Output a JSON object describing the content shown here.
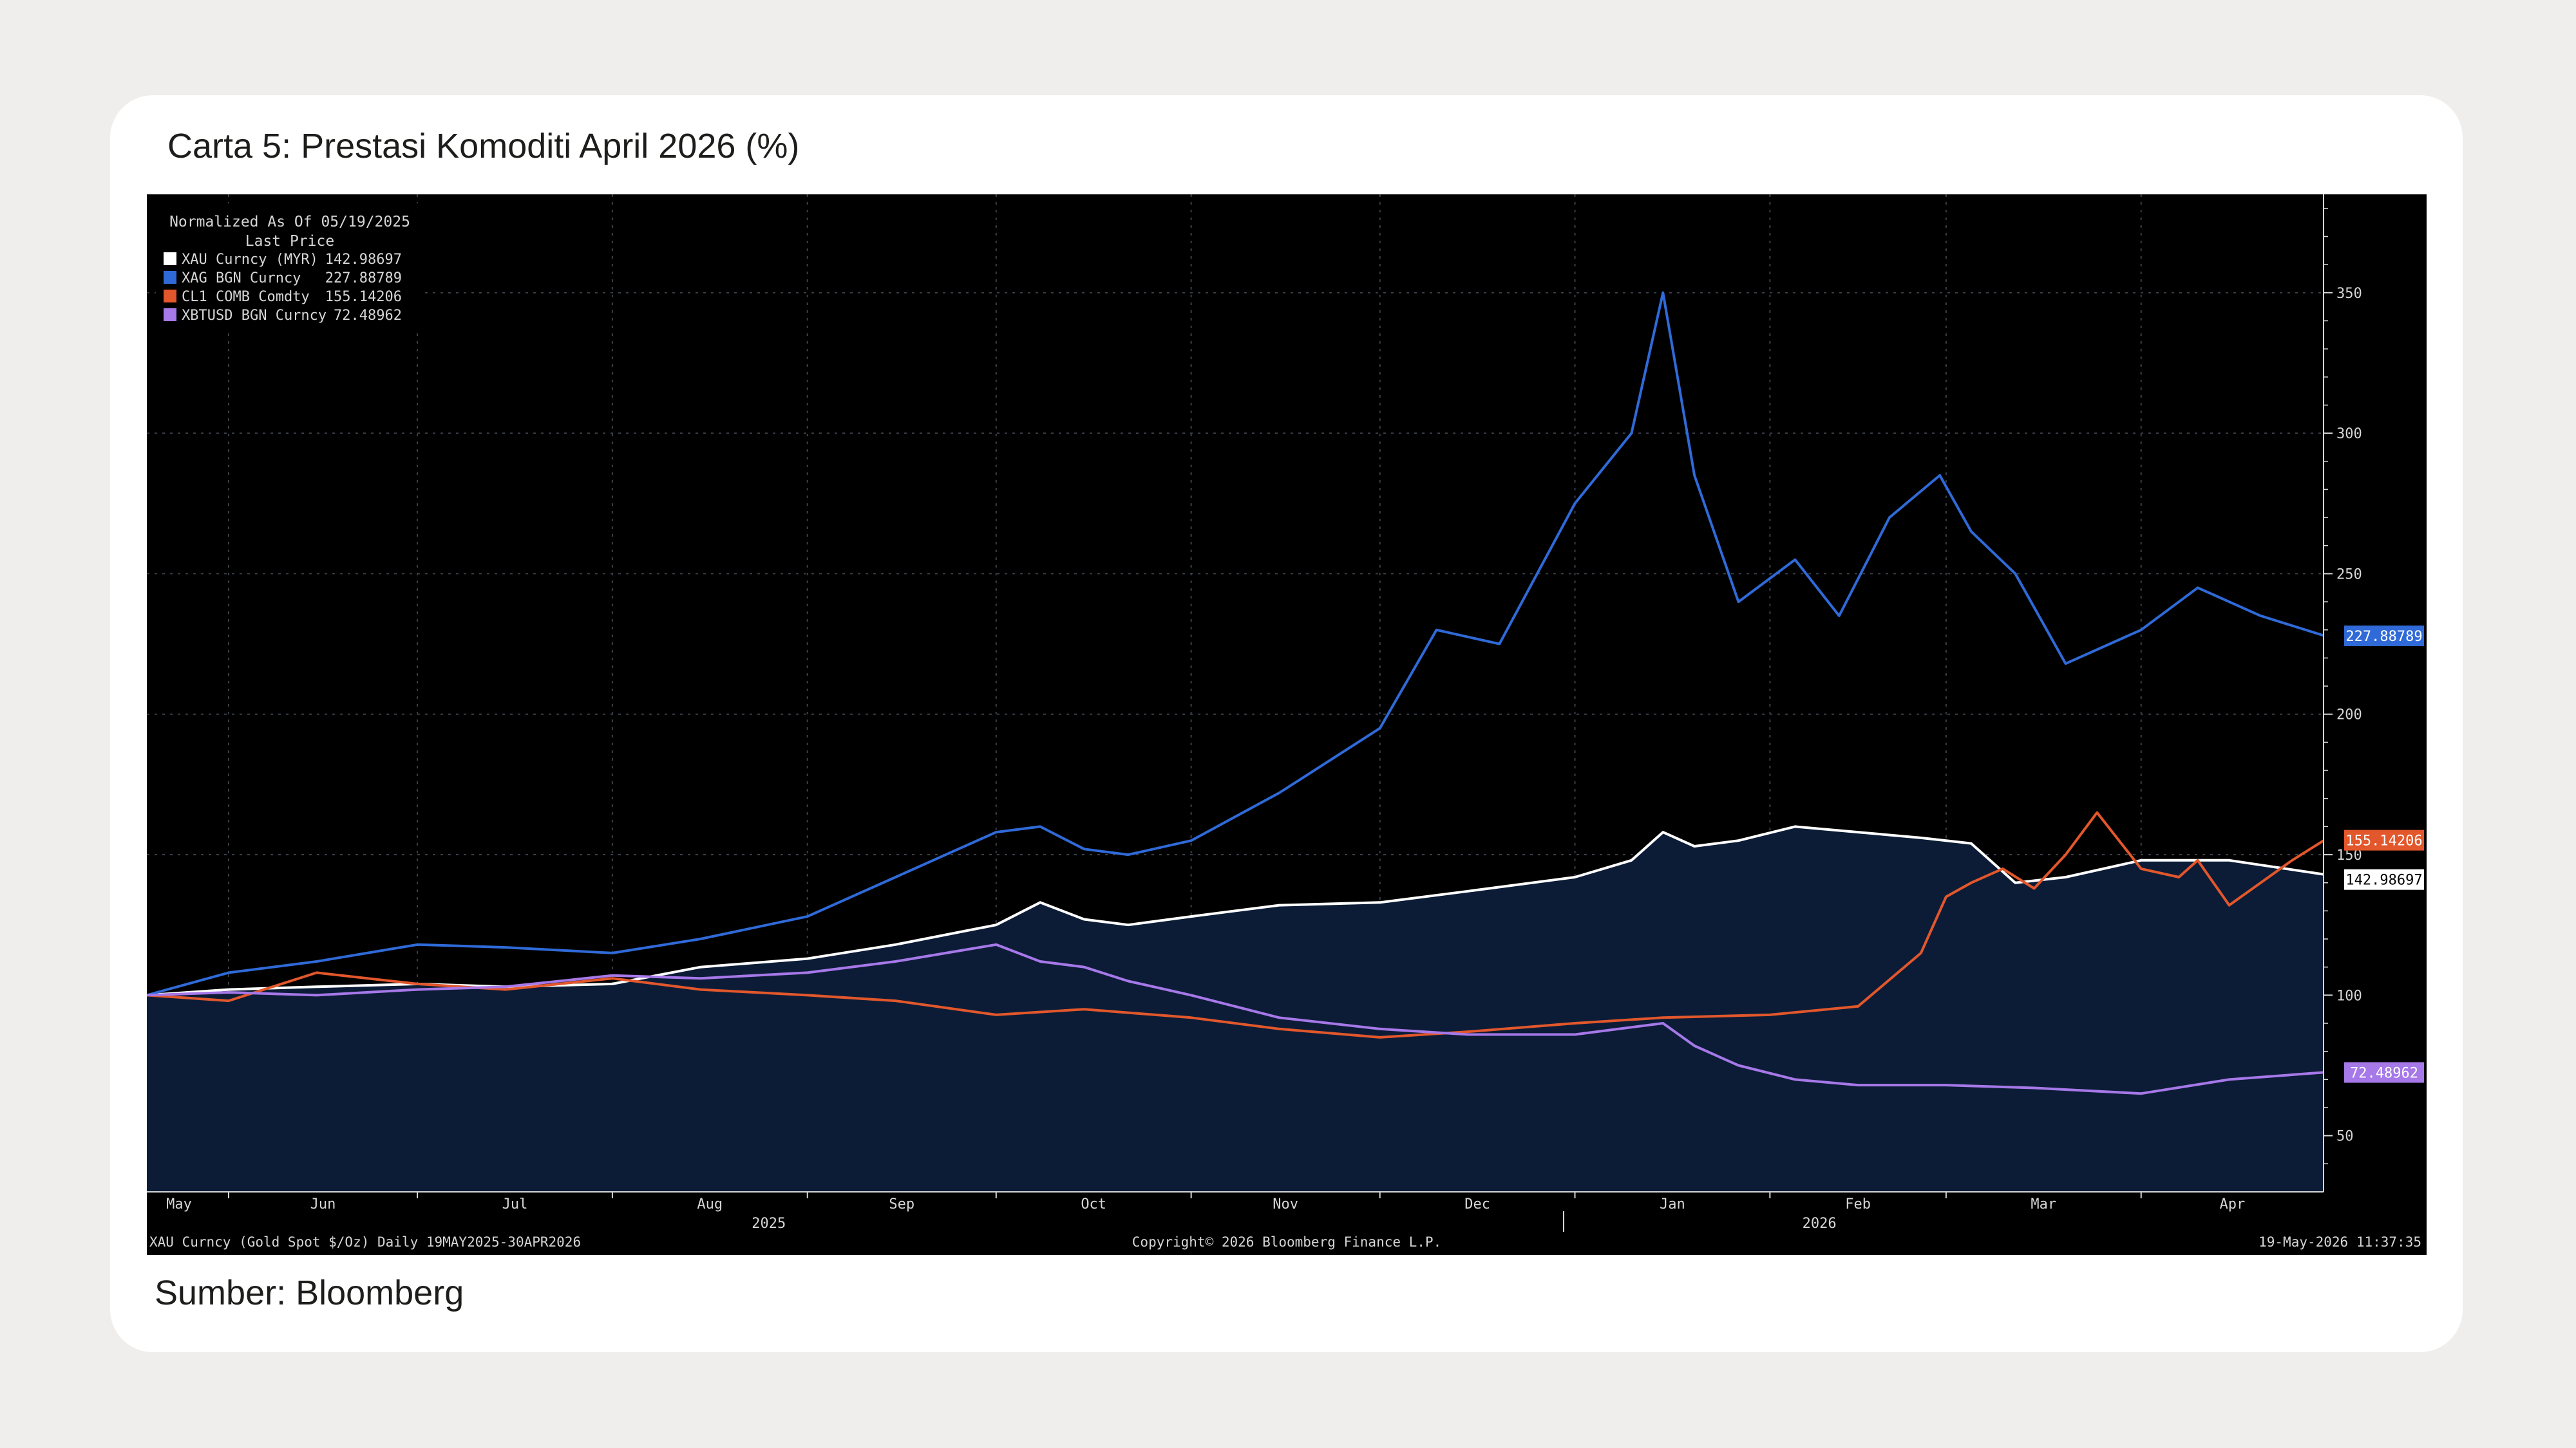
{
  "card": {
    "title": "Carta 5: Prestasi Komoditi April 2026 (%)",
    "source": "Sumber: Bloomberg"
  },
  "legend": {
    "heading": "Normalized As Of 05/19/2025",
    "subheading": "Last Price",
    "items": [
      {
        "name": "XAU Curncy (MYR)",
        "value": "142.98697",
        "color": "#ffffff"
      },
      {
        "name": "XAG BGN Curncy",
        "value": "227.88789",
        "color": "#2f6ad8"
      },
      {
        "name": "CL1 COMB Comdty",
        "value": "155.14206",
        "color": "#e2572b"
      },
      {
        "name": "XBTUSD BGN Curncy",
        "value": "72.48962",
        "color": "#a678e8"
      }
    ]
  },
  "footer": {
    "left": "XAU Curncy (Gold Spot  $/Oz) Daily 19MAY2025-30APR2026",
    "center": "Copyright© 2026 Bloomberg Finance L.P.",
    "right": "19-May-2026 11:37:35"
  },
  "colors": {
    "background": "#000000",
    "area_fill": "#0c1c37",
    "grid": "#3a3f48",
    "axis_text": "#d6d6d6"
  },
  "chart_data": {
    "type": "line",
    "title": "Carta 5: Prestasi Komoditi April 2026 (%)",
    "x_range": [
      "2025-05-19",
      "2026-04-30"
    ],
    "ylim": [
      30,
      385
    ],
    "y_axis_position": "right",
    "y_ticks": [
      50,
      100,
      150,
      200,
      250,
      300,
      350
    ],
    "x_month_ticks": [
      {
        "label": "May",
        "date": "2025-05-19"
      },
      {
        "label": "Jun",
        "date": "2025-06-01"
      },
      {
        "label": "Jul",
        "date": "2025-07-01"
      },
      {
        "label": "Aug",
        "date": "2025-08-01"
      },
      {
        "label": "Sep",
        "date": "2025-09-01"
      },
      {
        "label": "Oct",
        "date": "2025-10-01"
      },
      {
        "label": "Nov",
        "date": "2025-11-01"
      },
      {
        "label": "Dec",
        "date": "2025-12-01"
      },
      {
        "label": "Jan",
        "date": "2026-01-01"
      },
      {
        "label": "Feb",
        "date": "2026-02-01"
      },
      {
        "label": "Mar",
        "date": "2026-03-01"
      },
      {
        "label": "Apr",
        "date": "2026-04-01"
      }
    ],
    "year_labels": [
      {
        "label": "2025",
        "date": "2025-09-01"
      },
      {
        "label": "2026",
        "date": "2026-02-15"
      }
    ],
    "grid": true,
    "legend_position": "top-left",
    "series": [
      {
        "name": "XAU Curncy (MYR)",
        "color": "#ffffff",
        "area": true,
        "last": 142.98697,
        "last_label": "142.98697",
        "x": [
          "2025-05-19",
          "2025-06-01",
          "2025-06-15",
          "2025-07-01",
          "2025-07-15",
          "2025-08-01",
          "2025-08-15",
          "2025-09-01",
          "2025-09-15",
          "2025-10-01",
          "2025-10-08",
          "2025-10-15",
          "2025-10-22",
          "2025-11-01",
          "2025-11-15",
          "2025-12-01",
          "2025-12-15",
          "2026-01-01",
          "2026-01-10",
          "2026-01-15",
          "2026-01-20",
          "2026-01-27",
          "2026-02-05",
          "2026-02-15",
          "2026-02-25",
          "2026-03-05",
          "2026-03-12",
          "2026-03-20",
          "2026-04-01",
          "2026-04-15",
          "2026-04-30"
        ],
        "y": [
          100,
          102,
          103,
          104,
          103,
          104,
          110,
          113,
          118,
          125,
          133,
          127,
          125,
          128,
          132,
          133,
          137,
          142,
          148,
          158,
          153,
          155,
          160,
          158,
          156,
          154,
          140,
          142,
          148,
          148,
          143
        ]
      },
      {
        "name": "XAG BGN Curncy",
        "color": "#2f6ad8",
        "last": 227.88789,
        "last_label": "227.88789",
        "x": [
          "2025-05-19",
          "2025-06-01",
          "2025-06-15",
          "2025-07-01",
          "2025-07-15",
          "2025-08-01",
          "2025-08-15",
          "2025-09-01",
          "2025-09-15",
          "2025-10-01",
          "2025-10-08",
          "2025-10-15",
          "2025-10-22",
          "2025-11-01",
          "2025-11-15",
          "2025-12-01",
          "2025-12-10",
          "2025-12-20",
          "2026-01-01",
          "2026-01-10",
          "2026-01-15",
          "2026-01-20",
          "2026-01-27",
          "2026-02-05",
          "2026-02-12",
          "2026-02-20",
          "2026-02-28",
          "2026-03-05",
          "2026-03-12",
          "2026-03-20",
          "2026-04-01",
          "2026-04-10",
          "2026-04-20",
          "2026-04-30"
        ],
        "y": [
          100,
          108,
          112,
          118,
          117,
          115,
          120,
          128,
          142,
          158,
          160,
          152,
          150,
          155,
          172,
          195,
          230,
          225,
          275,
          300,
          350,
          285,
          240,
          255,
          235,
          270,
          285,
          265,
          250,
          218,
          230,
          245,
          235,
          228
        ]
      },
      {
        "name": "CL1 COMB Comdty",
        "color": "#e2572b",
        "last": 155.14206,
        "last_label": "155.14206",
        "x": [
          "2025-05-19",
          "2025-06-01",
          "2025-06-15",
          "2025-07-01",
          "2025-07-15",
          "2025-08-01",
          "2025-08-15",
          "2025-09-01",
          "2025-09-15",
          "2025-10-01",
          "2025-10-15",
          "2025-11-01",
          "2025-11-15",
          "2025-12-01",
          "2025-12-15",
          "2026-01-01",
          "2026-01-15",
          "2026-02-01",
          "2026-02-15",
          "2026-02-25",
          "2026-03-01",
          "2026-03-05",
          "2026-03-10",
          "2026-03-15",
          "2026-03-20",
          "2026-03-25",
          "2026-04-01",
          "2026-04-07",
          "2026-04-10",
          "2026-04-15",
          "2026-04-20",
          "2026-04-25",
          "2026-04-30"
        ],
        "y": [
          100,
          98,
          108,
          104,
          102,
          106,
          102,
          100,
          98,
          93,
          95,
          92,
          88,
          85,
          87,
          90,
          92,
          93,
          96,
          115,
          135,
          140,
          145,
          138,
          150,
          165,
          145,
          142,
          148,
          132,
          140,
          148,
          155
        ]
      },
      {
        "name": "XBTUSD BGN Curncy",
        "color": "#a678e8",
        "last": 72.48962,
        "last_label": "72.48962",
        "x": [
          "2025-05-19",
          "2025-06-01",
          "2025-06-15",
          "2025-07-01",
          "2025-07-15",
          "2025-08-01",
          "2025-08-15",
          "2025-09-01",
          "2025-09-15",
          "2025-10-01",
          "2025-10-08",
          "2025-10-15",
          "2025-10-22",
          "2025-11-01",
          "2025-11-15",
          "2025-12-01",
          "2025-12-15",
          "2026-01-01",
          "2026-01-15",
          "2026-01-20",
          "2026-01-27",
          "2026-02-05",
          "2026-02-15",
          "2026-03-01",
          "2026-03-15",
          "2026-04-01",
          "2026-04-15",
          "2026-04-30"
        ],
        "y": [
          100,
          101,
          100,
          102,
          103,
          107,
          106,
          108,
          112,
          118,
          112,
          110,
          105,
          100,
          92,
          88,
          86,
          86,
          90,
          82,
          75,
          70,
          68,
          68,
          67,
          65,
          70,
          72.5
        ]
      }
    ]
  }
}
